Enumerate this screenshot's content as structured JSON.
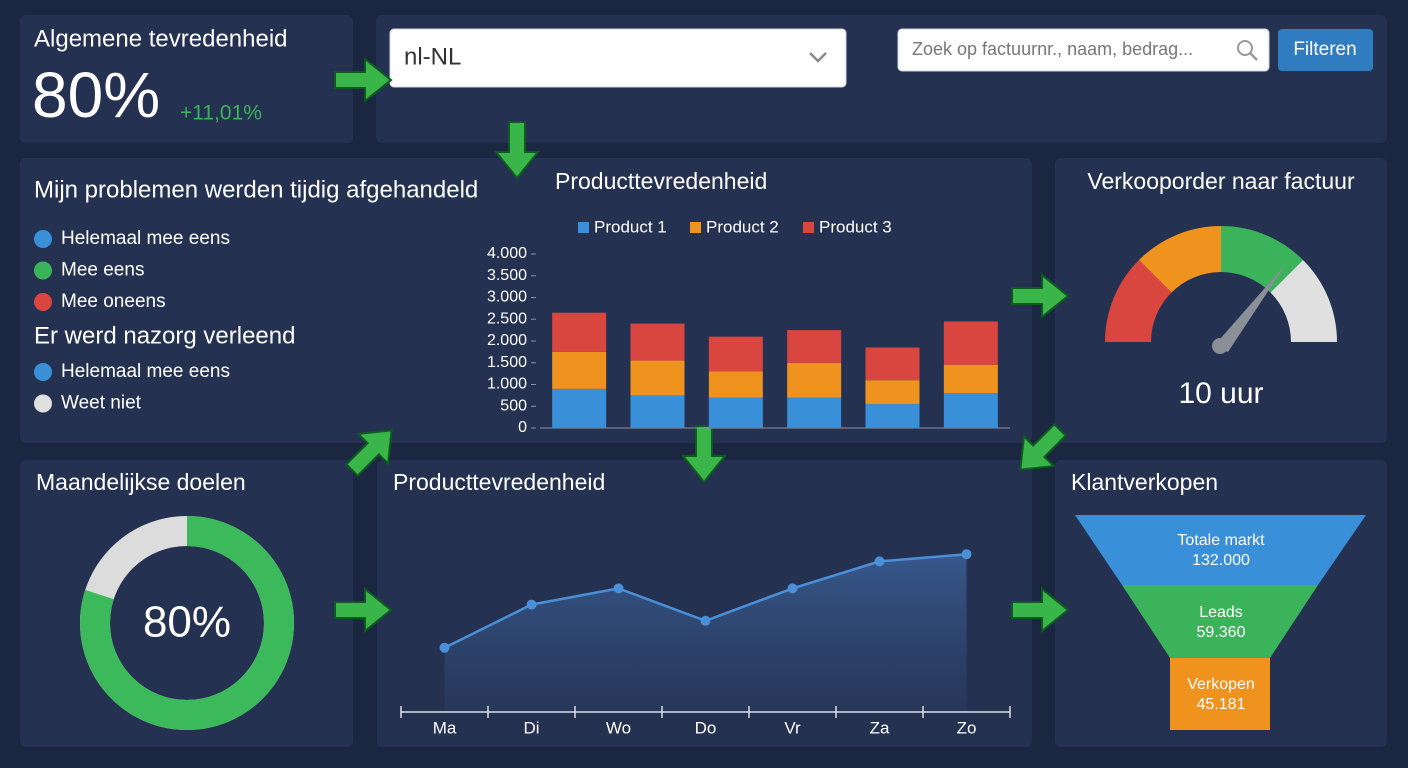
{
  "kpi": {
    "title": "Algemene tevredenheid",
    "value": "80%",
    "change": "+11,01%"
  },
  "toolbar": {
    "locale": "nl-NL",
    "search_placeholder": "Zoek op factuurnr., naam, bedrag...",
    "button": "Filteren"
  },
  "survey": {
    "question1": "Mijn problemen werden tijdig afgehandeld",
    "legend1": [
      {
        "label": "Helemaal mee eens",
        "color": "#3a8fd9"
      },
      {
        "label": "Mee eens",
        "color": "#3bb35a"
      },
      {
        "label": "Mee oneens",
        "color": "#d9453f"
      }
    ],
    "question2": "Er werd nazorg verleend",
    "legend2": [
      {
        "label": "Helemaal mee eens",
        "color": "#3a8fd9"
      },
      {
        "label": "Weet niet",
        "color": "#e0e0e0"
      }
    ]
  },
  "bar_chart": {
    "type": "bar",
    "title": "Producttevredenheid",
    "categories": [
      null,
      null,
      null,
      null,
      null,
      null
    ],
    "series": [
      {
        "name": "Product 1",
        "color": "#3a8fd9",
        "values": [
          900,
          750,
          700,
          700,
          550,
          800
        ]
      },
      {
        "name": "Product 2",
        "color": "#f0921e",
        "values": [
          850,
          800,
          600,
          800,
          550,
          650
        ]
      },
      {
        "name": "Product 3",
        "color": "#d9453f",
        "values": [
          900,
          850,
          800,
          750,
          750,
          1000
        ]
      }
    ],
    "stacked": true,
    "ylim": [
      0,
      4000
    ],
    "yticks": [
      0,
      500,
      {
        "value": 1000,
        "label": "1.000"
      },
      {
        "value": 1500,
        "label": "1.500"
      },
      {
        "value": 2000,
        "label": "2.000"
      },
      {
        "value": 2500,
        "label": "2.500"
      },
      {
        "value": 3000,
        "label": "3.000"
      },
      {
        "value": 3500,
        "label": "3.500"
      },
      {
        "value": 4000,
        "label": "4.000"
      }
    ],
    "legend": "top"
  },
  "gauge": {
    "title": "Verkooporder naar factuur",
    "value_label": "10 uur",
    "colors": [
      "#d9453f",
      "#f0921e",
      "#3bb35a",
      "#e0e0e0"
    ]
  },
  "donut": {
    "type": "pie",
    "title": "Maandelijkse doelen",
    "values": [
      80
    ],
    "value_labels": [
      "80%"
    ],
    "color": "#3cb95a",
    "rest_color": "#dcdcdc"
  },
  "line_chart": {
    "type": "line",
    "title": "Producttevredenheid",
    "categories": [
      "Ma",
      "Di",
      "Wo",
      "Do",
      "Vr",
      "Za",
      "Zo"
    ],
    "values": [
      29,
      53,
      62,
      44,
      62,
      77,
      81
    ],
    "ylim": [
      0,
      100
    ],
    "color": "#4a90d9"
  },
  "funnel": {
    "type": "funnel",
    "title": "Klantverkopen",
    "stages": [
      {
        "label": "Totale markt",
        "value": 132000,
        "value_label": "132.000",
        "color": "#3a8fd9"
      },
      {
        "label": "Leads",
        "value": 59360,
        "value_label": "59.360",
        "color": "#3bb35a"
      },
      {
        "label": "Verkopen",
        "value": 45181,
        "value_label": "45.181",
        "color": "#f0921e"
      }
    ]
  }
}
